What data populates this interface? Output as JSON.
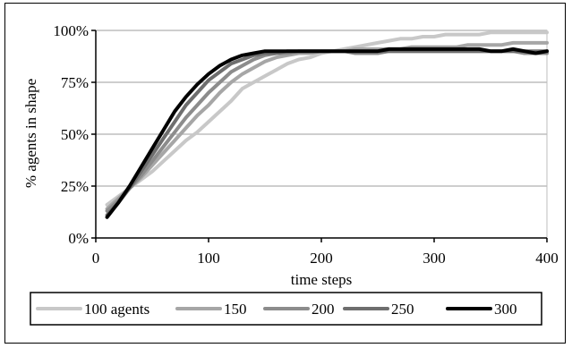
{
  "chart_data": {
    "type": "line",
    "xlabel": "time steps",
    "ylabel": "% agents in shape",
    "xlim": [
      0,
      400
    ],
    "ylim": [
      0,
      100
    ],
    "xticks": [
      0,
      100,
      200,
      300,
      400
    ],
    "xtick_labels": [
      "0",
      "100",
      "200",
      "300",
      "400"
    ],
    "yticks": [
      0,
      25,
      50,
      75,
      100
    ],
    "ytick_labels": [
      "0%",
      "25%",
      "50%",
      "75%",
      "100%"
    ],
    "grid": "horizontal",
    "legend_position": "bottom",
    "series": [
      {
        "name": "100 agents",
        "color": "#c8c8c8",
        "points": [
          [
            10,
            16
          ],
          [
            20,
            20
          ],
          [
            30,
            24
          ],
          [
            40,
            28
          ],
          [
            50,
            32
          ],
          [
            60,
            37
          ],
          [
            70,
            42
          ],
          [
            80,
            47
          ],
          [
            90,
            51
          ],
          [
            100,
            56
          ],
          [
            110,
            61
          ],
          [
            120,
            66
          ],
          [
            130,
            72
          ],
          [
            140,
            75
          ],
          [
            150,
            78
          ],
          [
            160,
            81
          ],
          [
            170,
            84
          ],
          [
            180,
            86
          ],
          [
            190,
            87
          ],
          [
            200,
            89
          ],
          [
            210,
            90
          ],
          [
            220,
            91
          ],
          [
            230,
            92
          ],
          [
            240,
            93
          ],
          [
            250,
            94
          ],
          [
            260,
            95
          ],
          [
            270,
            96
          ],
          [
            280,
            96
          ],
          [
            290,
            97
          ],
          [
            300,
            97
          ],
          [
            310,
            98
          ],
          [
            320,
            98
          ],
          [
            330,
            98
          ],
          [
            340,
            98
          ],
          [
            350,
            99
          ],
          [
            360,
            99
          ],
          [
            370,
            99
          ],
          [
            380,
            99
          ],
          [
            390,
            99
          ],
          [
            400,
            99
          ]
        ]
      },
      {
        "name": "150",
        "color": "#a6a6a6",
        "points": [
          [
            10,
            14
          ],
          [
            20,
            19
          ],
          [
            30,
            24
          ],
          [
            40,
            29
          ],
          [
            50,
            35
          ],
          [
            60,
            41
          ],
          [
            70,
            47
          ],
          [
            80,
            53
          ],
          [
            90,
            59
          ],
          [
            100,
            64
          ],
          [
            110,
            70
          ],
          [
            120,
            75
          ],
          [
            130,
            79
          ],
          [
            140,
            82
          ],
          [
            150,
            85
          ],
          [
            160,
            87
          ],
          [
            170,
            88
          ],
          [
            180,
            89
          ],
          [
            190,
            89
          ],
          [
            200,
            90
          ],
          [
            210,
            90
          ],
          [
            220,
            90
          ],
          [
            230,
            91
          ],
          [
            240,
            91
          ],
          [
            250,
            91
          ],
          [
            260,
            91
          ],
          [
            270,
            91
          ],
          [
            280,
            92
          ],
          [
            290,
            92
          ],
          [
            300,
            92
          ],
          [
            310,
            92
          ],
          [
            320,
            92
          ],
          [
            330,
            93
          ],
          [
            340,
            93
          ],
          [
            350,
            93
          ],
          [
            360,
            93
          ],
          [
            370,
            94
          ],
          [
            380,
            94
          ],
          [
            390,
            94
          ],
          [
            400,
            94
          ]
        ]
      },
      {
        "name": "200",
        "color": "#8c8c8c",
        "points": [
          [
            10,
            13
          ],
          [
            20,
            18
          ],
          [
            30,
            24
          ],
          [
            40,
            30
          ],
          [
            50,
            37
          ],
          [
            60,
            44
          ],
          [
            70,
            51
          ],
          [
            80,
            58
          ],
          [
            90,
            64
          ],
          [
            100,
            70
          ],
          [
            110,
            75
          ],
          [
            120,
            80
          ],
          [
            130,
            83
          ],
          [
            140,
            86
          ],
          [
            150,
            88
          ],
          [
            160,
            89
          ],
          [
            170,
            89
          ],
          [
            180,
            90
          ],
          [
            190,
            90
          ],
          [
            200,
            90
          ],
          [
            210,
            90
          ],
          [
            220,
            90
          ],
          [
            230,
            89
          ],
          [
            240,
            89
          ],
          [
            250,
            89
          ],
          [
            260,
            90
          ],
          [
            270,
            90
          ],
          [
            280,
            90
          ],
          [
            290,
            90
          ],
          [
            300,
            90
          ],
          [
            310,
            90
          ],
          [
            320,
            90
          ],
          [
            330,
            90
          ],
          [
            340,
            90
          ],
          [
            350,
            90
          ],
          [
            360,
            90
          ],
          [
            370,
            90
          ],
          [
            380,
            89
          ],
          [
            390,
            89
          ],
          [
            400,
            89
          ]
        ]
      },
      {
        "name": "250",
        "color": "#6e6e6e",
        "points": [
          [
            10,
            11
          ],
          [
            20,
            17
          ],
          [
            30,
            24
          ],
          [
            40,
            32
          ],
          [
            50,
            40
          ],
          [
            60,
            48
          ],
          [
            70,
            56
          ],
          [
            80,
            64
          ],
          [
            90,
            70
          ],
          [
            100,
            76
          ],
          [
            110,
            80
          ],
          [
            120,
            84
          ],
          [
            130,
            86
          ],
          [
            140,
            88
          ],
          [
            150,
            89
          ],
          [
            160,
            89
          ],
          [
            170,
            90
          ],
          [
            180,
            90
          ],
          [
            190,
            90
          ],
          [
            200,
            90
          ],
          [
            210,
            90
          ],
          [
            220,
            90
          ],
          [
            230,
            90
          ],
          [
            240,
            90
          ],
          [
            250,
            90
          ],
          [
            260,
            90
          ],
          [
            270,
            90
          ],
          [
            280,
            90
          ],
          [
            290,
            90
          ],
          [
            300,
            90
          ],
          [
            310,
            90
          ],
          [
            320,
            90
          ],
          [
            330,
            90
          ],
          [
            340,
            90
          ],
          [
            350,
            90
          ],
          [
            360,
            90
          ],
          [
            370,
            90
          ],
          [
            380,
            90
          ],
          [
            390,
            90
          ],
          [
            400,
            90
          ]
        ]
      },
      {
        "name": "300",
        "color": "#000000",
        "points": [
          [
            10,
            10
          ],
          [
            20,
            17
          ],
          [
            30,
            25
          ],
          [
            40,
            34
          ],
          [
            50,
            43
          ],
          [
            60,
            52
          ],
          [
            70,
            61
          ],
          [
            80,
            68
          ],
          [
            90,
            74
          ],
          [
            100,
            79
          ],
          [
            110,
            83
          ],
          [
            120,
            86
          ],
          [
            130,
            88
          ],
          [
            140,
            89
          ],
          [
            150,
            90
          ],
          [
            160,
            90
          ],
          [
            170,
            90
          ],
          [
            180,
            90
          ],
          [
            190,
            90
          ],
          [
            200,
            90
          ],
          [
            210,
            90
          ],
          [
            220,
            90
          ],
          [
            230,
            90
          ],
          [
            240,
            90
          ],
          [
            250,
            90
          ],
          [
            260,
            91
          ],
          [
            270,
            91
          ],
          [
            280,
            91
          ],
          [
            290,
            91
          ],
          [
            300,
            91
          ],
          [
            310,
            91
          ],
          [
            320,
            91
          ],
          [
            330,
            91
          ],
          [
            340,
            91
          ],
          [
            350,
            90
          ],
          [
            360,
            90
          ],
          [
            370,
            91
          ],
          [
            380,
            90
          ],
          [
            390,
            89
          ],
          [
            400,
            90
          ]
        ]
      }
    ]
  }
}
